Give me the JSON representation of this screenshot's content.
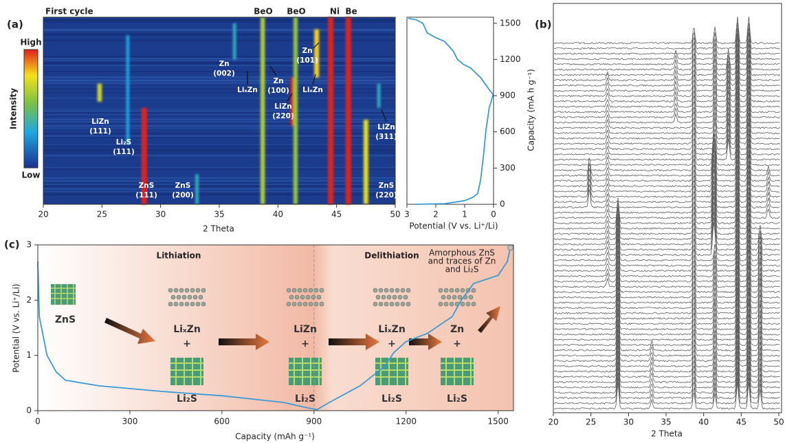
{
  "chart_data": [
    {
      "type": "heatmap",
      "panel": "(a)",
      "title": "First cycle",
      "xlabel": "2 Theta",
      "xlim": [
        20,
        50
      ],
      "xticks": [
        20,
        25,
        30,
        35,
        40,
        45,
        50
      ],
      "ylim": [
        0,
        1550
      ],
      "colorbar": {
        "label": "Intensity",
        "high": "High",
        "low": "Low"
      },
      "peaks": [
        {
          "x": 24.8,
          "from": 850,
          "to": 1000,
          "level": 0.7
        },
        {
          "x": 27.2,
          "from": 500,
          "to": 1400,
          "level": 0.3
        },
        {
          "x": 28.6,
          "from": 0,
          "to": 800,
          "level": 1.0
        },
        {
          "x": 33.1,
          "from": 0,
          "to": 250,
          "level": 0.35
        },
        {
          "x": 36.3,
          "from": 1200,
          "to": 1500,
          "level": 0.35
        },
        {
          "x": 38.7,
          "from": 0,
          "to": 1550,
          "level": 0.65
        },
        {
          "x": 41.3,
          "from": 650,
          "to": 1050,
          "level": 1.0
        },
        {
          "x": 41.5,
          "from": 0,
          "to": 1550,
          "level": 0.6
        },
        {
          "x": 43.3,
          "from": 1050,
          "to": 1450,
          "level": 0.8
        },
        {
          "x": 44.5,
          "from": 0,
          "to": 1550,
          "level": 1.0
        },
        {
          "x": 46.0,
          "from": 0,
          "to": 1550,
          "level": 1.0
        },
        {
          "x": 47.5,
          "from": 0,
          "to": 700,
          "level": 0.75
        },
        {
          "x": 48.6,
          "from": 800,
          "to": 1000,
          "level": 0.35
        }
      ],
      "top_labels": [
        "BeO",
        "BeO",
        "Ni",
        "Be"
      ],
      "annotations": [
        [
          "Zn",
          "(002)"
        ],
        [
          "LiₓZn"
        ],
        [
          "Zn",
          "(100)"
        ],
        [
          "LiZn",
          "(220)"
        ],
        [
          "Zn",
          "(101)"
        ],
        [
          "LiₓZn"
        ],
        [
          "LiZn",
          "(111)"
        ],
        [
          "Li₂S",
          "(111)"
        ],
        [
          "ZnS",
          "(111)"
        ],
        [
          "ZnS",
          "(200)"
        ],
        [
          "LiZn",
          "(311)"
        ],
        [
          "ZnS",
          "(220)"
        ]
      ]
    },
    {
      "type": "line",
      "xlabel": "Potential (V vs. Li⁺/Li)",
      "ylabel": "Capacity (mA h g⁻¹)",
      "xlim": [
        3,
        0
      ],
      "xticks": [
        3,
        2,
        1,
        0
      ],
      "ylim": [
        0,
        1550
      ],
      "yticks": [
        0,
        300,
        600,
        900,
        1200,
        1500
      ],
      "color": "#3a9bd6",
      "x": [
        2.7,
        1.7,
        1.0,
        0.7,
        0.55,
        0.45,
        0.35,
        0.27,
        0.15,
        0.05,
        0.02,
        0.15,
        0.45,
        0.8,
        1.05,
        1.25,
        1.4,
        1.7,
        2.0,
        2.3,
        2.45,
        2.7,
        2.95
      ],
      "values": [
        0,
        5,
        30,
        60,
        90,
        200,
        400,
        600,
        800,
        880,
        910,
        950,
        1050,
        1130,
        1160,
        1200,
        1270,
        1350,
        1380,
        1420,
        1500,
        1530,
        1540
      ]
    },
    {
      "type": "line",
      "panel": "(c)",
      "xlabel": "Capacity (mAh g⁻¹)",
      "ylabel": "Potential (V vs. Li⁺/Li)",
      "xlim": [
        0,
        1550
      ],
      "xticks": [
        0,
        300,
        600,
        900,
        1200,
        1500
      ],
      "ylim": [
        0,
        3
      ],
      "yticks": [
        0,
        1,
        2,
        3
      ],
      "color": "#3a9bd6",
      "x": [
        0,
        5,
        30,
        60,
        90,
        200,
        400,
        600,
        800,
        880,
        910,
        950,
        1050,
        1130,
        1160,
        1200,
        1270,
        1350,
        1380,
        1420,
        1500,
        1530,
        1540
      ],
      "values": [
        2.7,
        1.7,
        1.0,
        0.7,
        0.55,
        0.45,
        0.35,
        0.27,
        0.15,
        0.05,
        0.02,
        0.15,
        0.45,
        0.8,
        1.05,
        1.25,
        1.4,
        1.7,
        2.0,
        2.3,
        2.45,
        2.7,
        2.95
      ],
      "stages": [
        "Lithiation",
        "Delithiation"
      ],
      "phases": [
        [
          "ZnS"
        ],
        [
          "LiₓZn",
          "+",
          "Li₂S"
        ],
        [
          "LiZn",
          "+",
          "Li₂S"
        ],
        [
          "LiₓZn",
          "+",
          "Li₂S"
        ],
        [
          "Zn",
          "+",
          "Li₂S"
        ]
      ],
      "note": [
        "Amorphous ZnS",
        "and traces of Zn",
        "and Li₂S"
      ]
    },
    {
      "type": "waterfall",
      "panel": "(b)",
      "xlabel": "2 Theta",
      "xlim": [
        20,
        50
      ],
      "xticks": [
        20,
        25,
        30,
        35,
        40,
        45,
        50
      ],
      "color": "#5a5a5a"
    }
  ]
}
